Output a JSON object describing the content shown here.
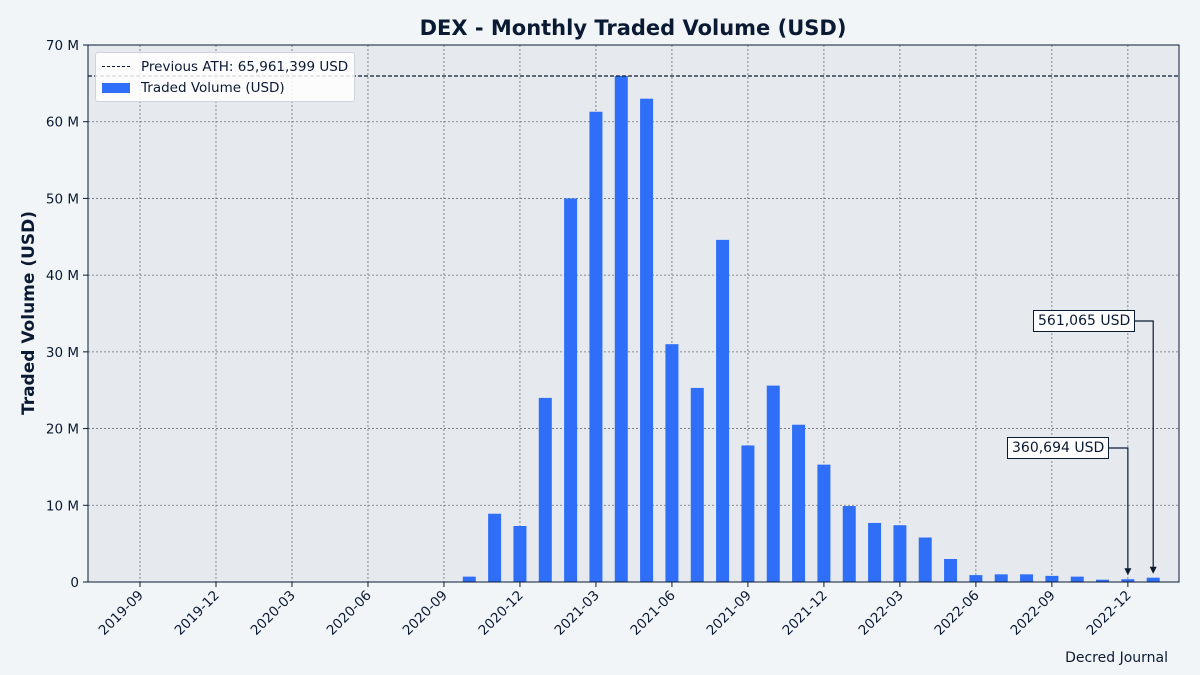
{
  "chart_data": {
    "type": "bar",
    "title": "DEX - Monthly Traded Volume (USD)",
    "xlabel": "",
    "ylabel": "Traded Volume (USD)",
    "ylim": [
      0,
      70000000
    ],
    "y_ticks": [
      "0",
      "10 M",
      "20 M",
      "30 M",
      "40 M",
      "50 M",
      "60 M",
      "70 M"
    ],
    "x_ticks": [
      "2019-09",
      "2019-12",
      "2020-03",
      "2020-06",
      "2020-09",
      "2020-12",
      "2021-03",
      "2021-06",
      "2021-09",
      "2021-12",
      "2022-03",
      "2022-06",
      "2022-09",
      "2022-12"
    ],
    "categories": [
      "2020-10",
      "2020-11",
      "2020-12",
      "2021-01",
      "2021-02",
      "2021-03",
      "2021-04",
      "2021-05",
      "2021-06",
      "2021-07",
      "2021-08",
      "2021-09",
      "2021-10",
      "2021-11",
      "2021-12",
      "2022-01",
      "2022-02",
      "2022-03",
      "2022-04",
      "2022-05",
      "2022-06",
      "2022-07",
      "2022-08",
      "2022-09",
      "2022-10",
      "2022-11",
      "2022-12",
      "2023-01"
    ],
    "series": [
      {
        "name": "Traded Volume (USD)",
        "color": "#2f6ef7",
        "values": [
          700000,
          8900000,
          7300000,
          24000000,
          50000000,
          61300000,
          65961399,
          63000000,
          31000000,
          25300000,
          44600000,
          17800000,
          25600000,
          20500000,
          15300000,
          9900000,
          7700000,
          7400000,
          5800000,
          3000000,
          900000,
          1000000,
          1000000,
          800000,
          700000,
          300000,
          360694,
          561065
        ]
      }
    ],
    "reference_line": {
      "label": "Previous ATH: 65,961,399 USD",
      "value": 65961399,
      "color": "#0b1a33"
    },
    "annotations": [
      {
        "text": "561,065 USD",
        "target": "2023-01",
        "value": 561065
      },
      {
        "text": "360,694 USD",
        "target": "2022-12",
        "value": 360694
      }
    ],
    "grid": true,
    "legend_position": "top-left"
  },
  "source": "Decred Journal"
}
